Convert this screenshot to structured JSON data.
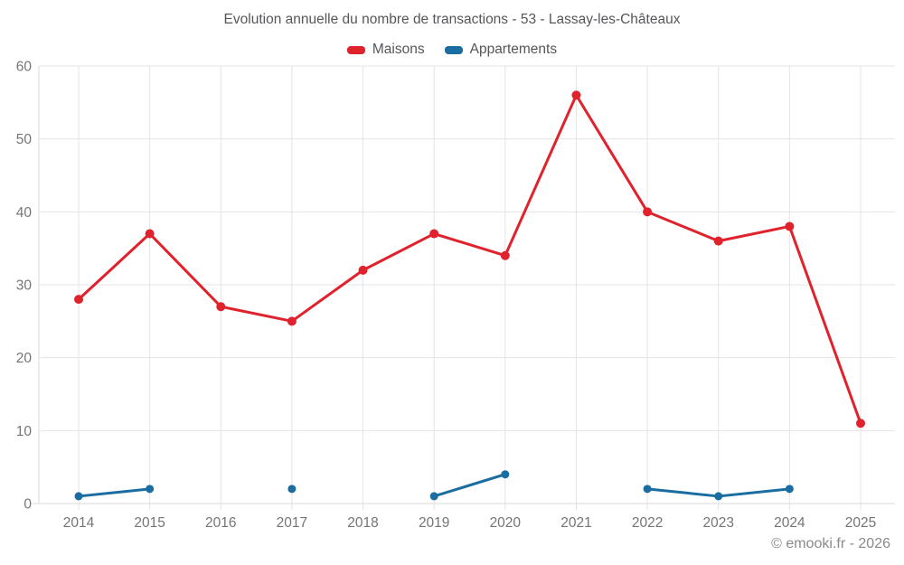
{
  "title": "Evolution annuelle du nombre de transactions - 53 - Lassay-les-Châteaux",
  "footer": "© emooki.fr - 2026",
  "palette": {
    "title_text": "#56565a",
    "tick_text": "#757575",
    "grid": "#e4e4e4",
    "axis": "#d9d9d9",
    "footer_text": "#8a8a8a",
    "background": "#ffffff"
  },
  "chart_data": {
    "type": "line",
    "title": "Evolution annuelle du nombre de transactions - 53 - Lassay-les-Châteaux",
    "categories": [
      "2014",
      "2015",
      "2016",
      "2017",
      "2018",
      "2019",
      "2020",
      "2021",
      "2022",
      "2023",
      "2024",
      "2025"
    ],
    "series": [
      {
        "name": "Maisons",
        "color": "#e0222d",
        "point_radius": 5,
        "values": [
          28,
          37,
          27,
          25,
          32,
          37,
          34,
          56,
          40,
          36,
          38,
          11
        ]
      },
      {
        "name": "Appartements",
        "color": "#1a6da0",
        "point_radius": 4.5,
        "values": [
          1,
          2,
          null,
          2,
          null,
          1,
          4,
          null,
          2,
          1,
          2,
          null
        ]
      }
    ],
    "xlabel": "",
    "ylabel": "",
    "ylim": [
      0,
      60
    ],
    "yticks": [
      0,
      10,
      20,
      30,
      40,
      50,
      60
    ],
    "grid": true,
    "legend_position": "top"
  }
}
